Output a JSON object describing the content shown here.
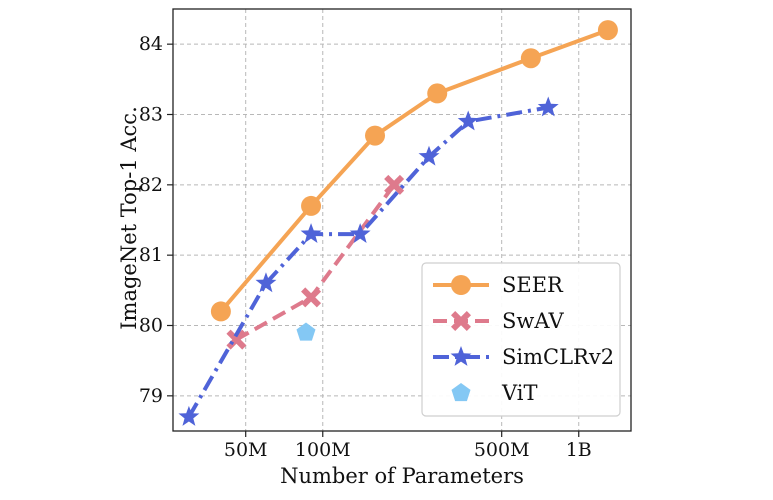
{
  "chart_data": {
    "type": "line",
    "title": "",
    "xlabel": "Number of Parameters",
    "ylabel": "ImageNet Top-1 Acc.",
    "x_scale": "log",
    "xlim": [
      26000000,
      1600000000
    ],
    "ylim": [
      78.5,
      84.5
    ],
    "grid": true,
    "legend_position": "lower-right",
    "x_ticks": [
      {
        "value": 50000000,
        "label": "50M"
      },
      {
        "value": 100000000,
        "label": "100M"
      },
      {
        "value": 500000000,
        "label": "500M"
      },
      {
        "value": 1000000000,
        "label": "1B"
      }
    ],
    "y_ticks": [
      {
        "value": 79,
        "label": "79"
      },
      {
        "value": 80,
        "label": "80"
      },
      {
        "value": 81,
        "label": "81"
      },
      {
        "value": 82,
        "label": "82"
      },
      {
        "value": 83,
        "label": "83"
      },
      {
        "value": 84,
        "label": "84"
      }
    ],
    "series": [
      {
        "name": "SEER",
        "color": "#f5a454",
        "marker": "circle",
        "line_style": "solid",
        "points": [
          {
            "x": 40000000,
            "y": 80.2
          },
          {
            "x": 90000000,
            "y": 81.7
          },
          {
            "x": 160000000,
            "y": 82.7
          },
          {
            "x": 280000000,
            "y": 83.3
          },
          {
            "x": 650000000,
            "y": 83.8
          },
          {
            "x": 1300000000,
            "y": 84.2
          }
        ]
      },
      {
        "name": "SwAV",
        "color": "#de7a8c",
        "marker": "x",
        "line_style": "dashed",
        "points": [
          {
            "x": 46000000,
            "y": 79.8
          },
          {
            "x": 90000000,
            "y": 80.4
          },
          {
            "x": 190000000,
            "y": 82.0
          }
        ]
      },
      {
        "name": "SimCLRv2",
        "color": "#4f63d8",
        "marker": "star",
        "line_style": "dashdot",
        "points": [
          {
            "x": 30000000,
            "y": 78.7
          },
          {
            "x": 60000000,
            "y": 80.6
          },
          {
            "x": 90000000,
            "y": 81.3
          },
          {
            "x": 140000000,
            "y": 81.3
          },
          {
            "x": 260000000,
            "y": 82.4
          },
          {
            "x": 370000000,
            "y": 82.9
          },
          {
            "x": 760000000,
            "y": 83.1
          }
        ]
      },
      {
        "name": "ViT",
        "color": "#84c8f4",
        "marker": "pentagon",
        "line_style": "none",
        "points": [
          {
            "x": 86000000,
            "y": 79.9
          }
        ]
      }
    ]
  }
}
